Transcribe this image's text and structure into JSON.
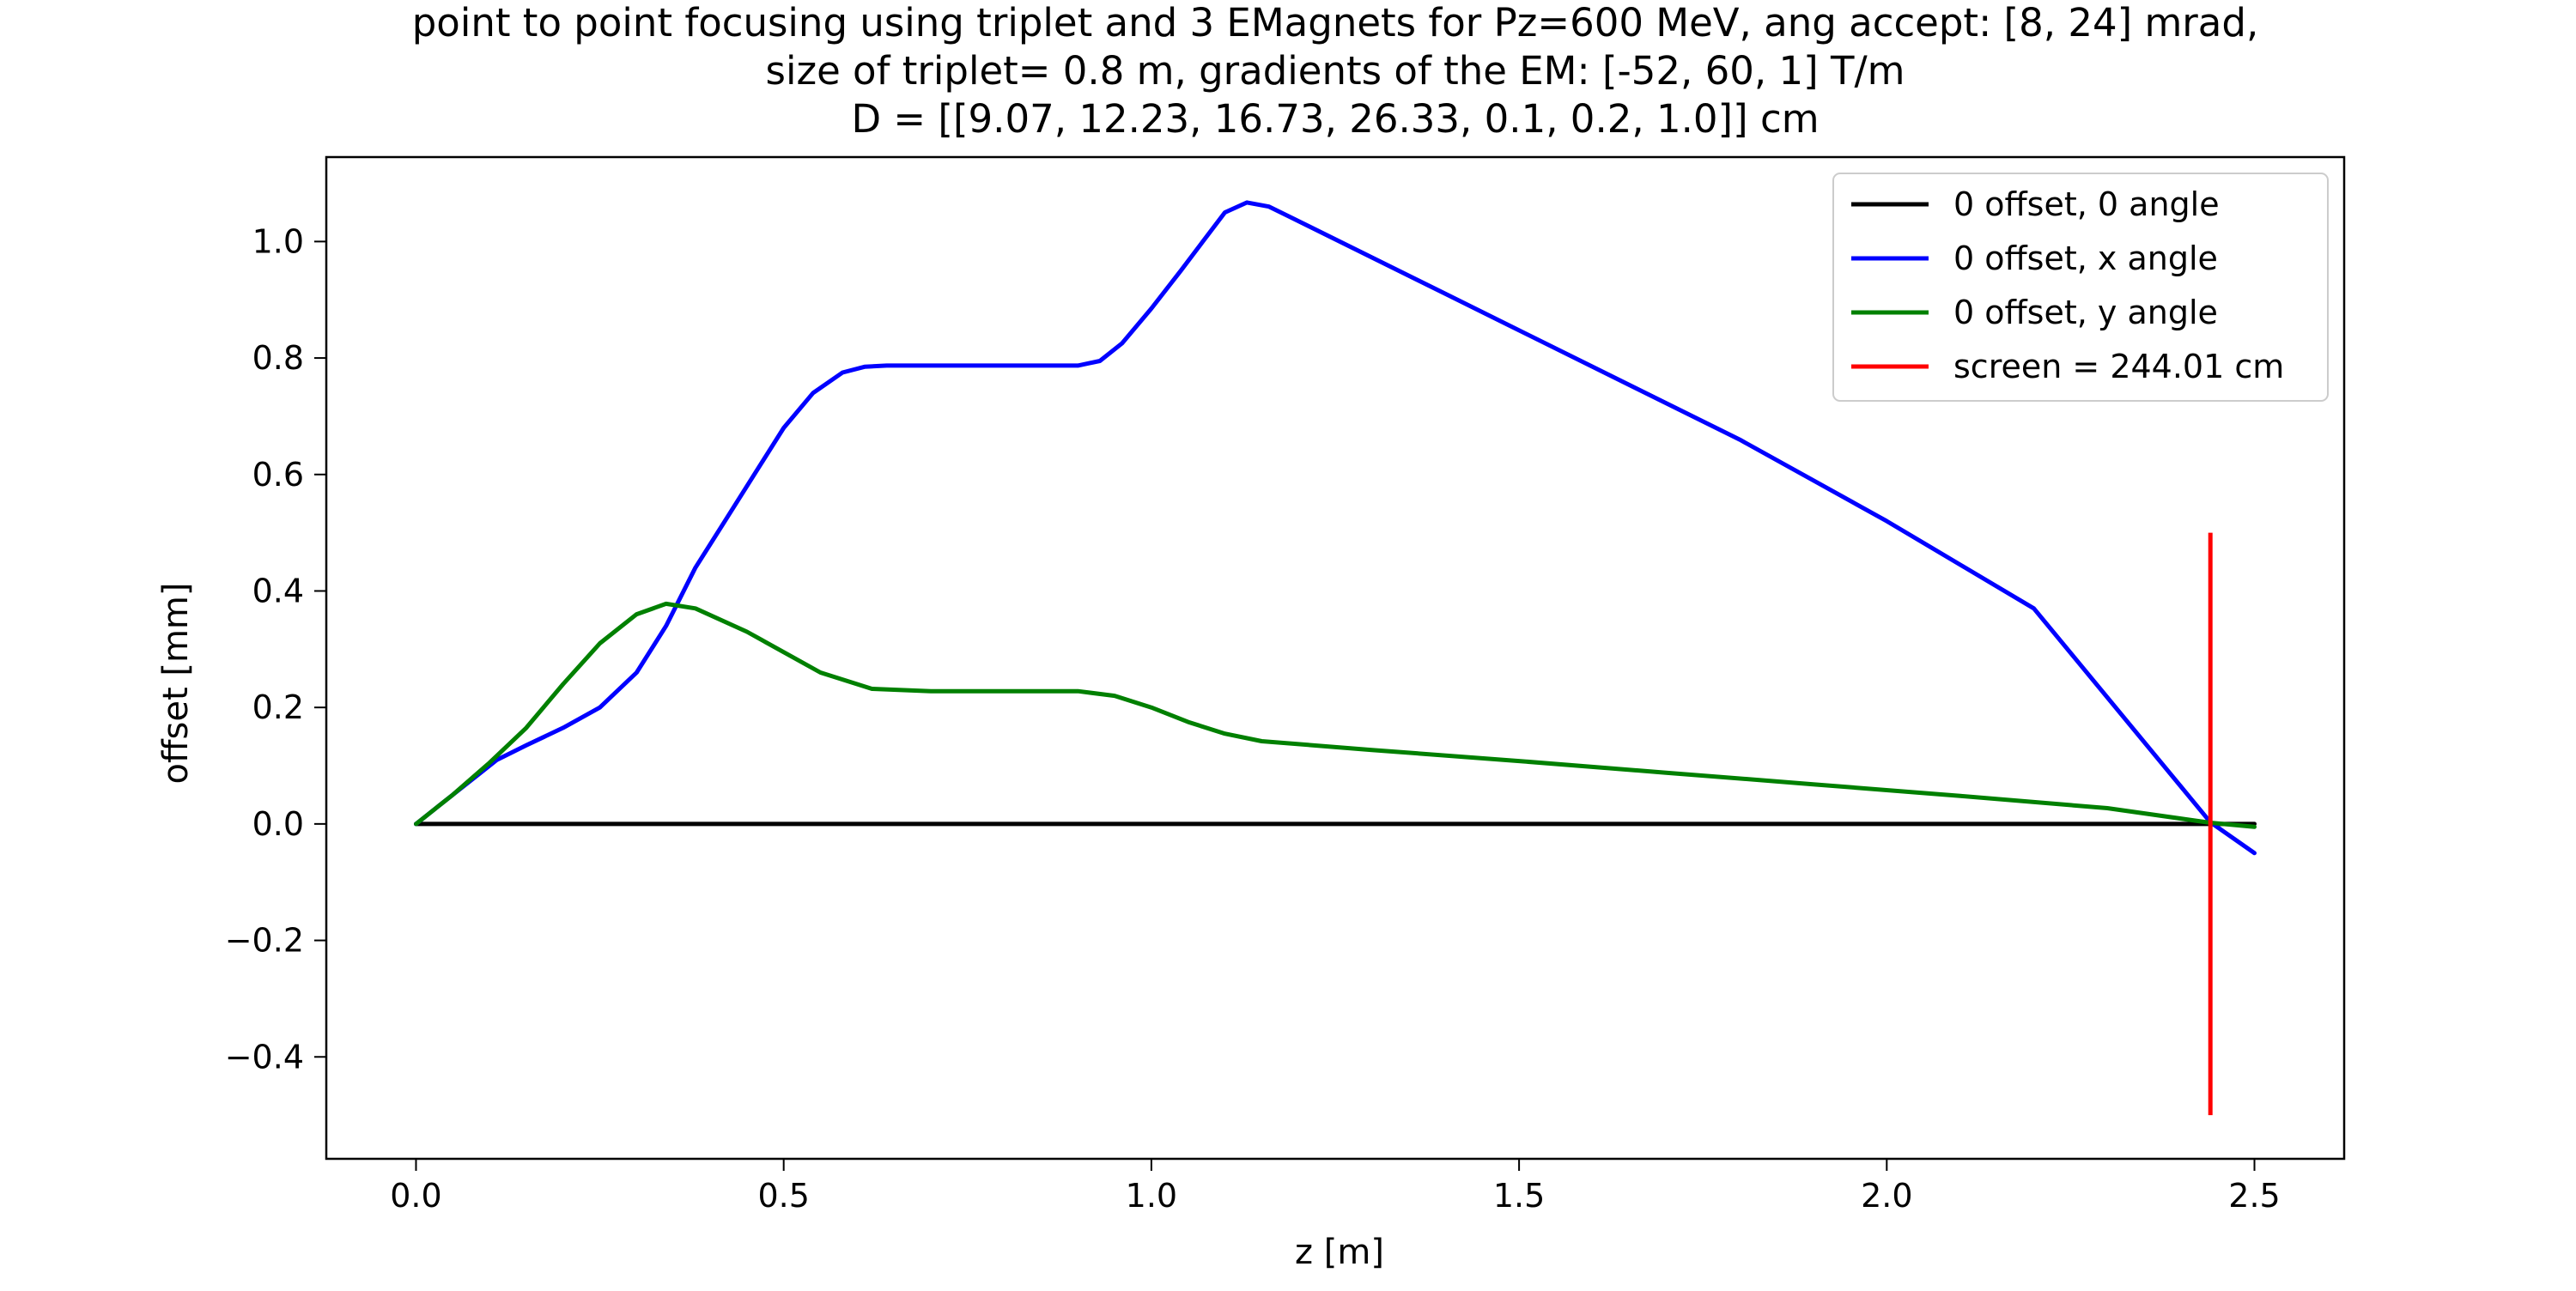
{
  "chart_data": {
    "type": "line",
    "title": [
      "point to point focusing using triplet and 3 EMagnets for Pz=600 MeV, ang accept: [8, 24] mrad,",
      "size of triplet= 0.8 m, gradients of the EM: [-52, 60, 1] T/m",
      "D = [[9.07, 12.23, 16.73, 26.33, 0.1, 0.2, 1.0]] cm"
    ],
    "xlabel": "z [m]",
    "ylabel": "offset [mm]",
    "xlim": [
      -0.122,
      2.622
    ],
    "ylim": [
      -0.575,
      1.145
    ],
    "xticks": [
      0.0,
      0.5,
      1.0,
      1.5,
      2.0,
      2.5
    ],
    "xtick_labels": [
      "0.0",
      "0.5",
      "1.0",
      "1.5",
      "2.0",
      "2.5"
    ],
    "yticks": [
      -0.4,
      -0.2,
      0.0,
      0.2,
      0.4,
      0.6,
      0.8,
      1.0
    ],
    "ytick_labels": [
      "−0.4",
      "−0.2",
      "0.0",
      "0.2",
      "0.4",
      "0.6",
      "0.8",
      "1.0"
    ],
    "grid": false,
    "legend_position": "top-right",
    "series": [
      {
        "name": "0 offset, 0 angle",
        "color": "#000000",
        "x": [
          0.0,
          2.5
        ],
        "y": [
          0.0,
          0.0
        ]
      },
      {
        "name": "0 offset, x angle",
        "color": "#0000ff",
        "x": [
          0.0,
          0.05,
          0.09,
          0.11,
          0.15,
          0.2,
          0.25,
          0.3,
          0.34,
          0.38,
          0.42,
          0.46,
          0.5,
          0.54,
          0.58,
          0.61,
          0.64,
          0.7,
          0.8,
          0.9,
          0.93,
          0.96,
          1.0,
          1.04,
          1.07,
          1.1,
          1.13,
          1.16,
          1.2,
          1.4,
          1.6,
          1.8,
          2.0,
          2.2,
          2.44,
          2.5
        ],
        "y": [
          0.0,
          0.05,
          0.09,
          0.11,
          0.135,
          0.165,
          0.2,
          0.26,
          0.34,
          0.44,
          0.52,
          0.6,
          0.68,
          0.74,
          0.775,
          0.785,
          0.787,
          0.787,
          0.787,
          0.787,
          0.795,
          0.825,
          0.885,
          0.95,
          1.0,
          1.05,
          1.067,
          1.06,
          1.035,
          0.91,
          0.785,
          0.66,
          0.52,
          0.37,
          0.003,
          -0.05
        ]
      },
      {
        "name": "0 offset, y angle",
        "color": "#008000",
        "x": [
          0.0,
          0.05,
          0.1,
          0.15,
          0.2,
          0.25,
          0.3,
          0.34,
          0.38,
          0.45,
          0.55,
          0.62,
          0.7,
          0.8,
          0.9,
          0.95,
          1.0,
          1.05,
          1.1,
          1.15,
          1.3,
          1.5,
          1.7,
          1.9,
          2.1,
          2.3,
          2.44,
          2.5
        ],
        "y": [
          0.0,
          0.05,
          0.105,
          0.165,
          0.24,
          0.31,
          0.36,
          0.378,
          0.37,
          0.33,
          0.26,
          0.232,
          0.228,
          0.228,
          0.228,
          0.22,
          0.2,
          0.175,
          0.155,
          0.142,
          0.127,
          0.108,
          0.088,
          0.068,
          0.048,
          0.027,
          0.002,
          -0.005
        ]
      }
    ],
    "screen": {
      "name": "screen = 244.01 cm",
      "color": "#ff0000",
      "x": 2.4401,
      "y": [
        -0.5,
        0.5
      ]
    }
  }
}
